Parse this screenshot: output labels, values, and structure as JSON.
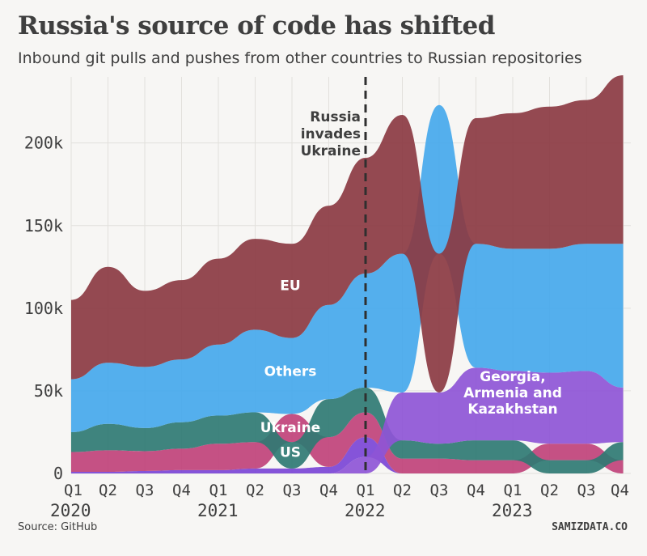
{
  "title": "Russia's source of code has shifted",
  "subtitle": "Inbound git pulls and pushes from other countries to Russian repositories",
  "source": "Source: GitHub",
  "brand": "SAMIZDATA.CO",
  "annotation": [
    "Russia",
    "invades",
    "Ukraine"
  ],
  "colors": {
    "EU": "#8b3a42",
    "Others": "#45a8ec",
    "Ukraine": "#2f7a73",
    "US": "#c0427a",
    "Georgia, Armenia and Kazakhstan": "#8e55d6",
    "Other small": "#7b45d6"
  },
  "chart_data": {
    "type": "area",
    "title": "Russia's source of code has shifted",
    "ylim": [
      0,
      240000
    ],
    "yticks": [
      0,
      50000,
      100000,
      150000,
      200000
    ],
    "yticklabels": [
      "0",
      "50k",
      "100k",
      "150k",
      "200k"
    ],
    "quarters": [
      "Q1",
      "Q2",
      "Q3",
      "Q4",
      "Q1",
      "Q2",
      "Q3",
      "Q4",
      "Q1",
      "Q2",
      "Q3",
      "Q4",
      "Q1",
      "Q2",
      "Q3",
      "Q4"
    ],
    "years": [
      {
        "label": "2020",
        "index": 0
      },
      {
        "label": "2021",
        "index": 4
      },
      {
        "label": "2022",
        "index": 8
      },
      {
        "label": "2023",
        "index": 12
      }
    ],
    "grid": true,
    "event": {
      "index": 8,
      "label": "Russia invades Ukraine"
    },
    "series": [
      {
        "name": "Other small",
        "labeled": false,
        "values": [
          1000,
          1000,
          1500,
          2000,
          2000,
          3000,
          3000,
          4000,
          12000,
          0,
          0,
          0,
          0,
          0,
          0,
          0
        ]
      },
      {
        "name": "US",
        "labeled": true,
        "values": [
          12000,
          13000,
          12000,
          13000,
          16000,
          16000,
          17000,
          18000,
          15000,
          9000,
          9000,
          8000,
          8000,
          10000,
          10000,
          8000
        ]
      },
      {
        "name": "Ukraine",
        "labeled": true,
        "values": [
          12000,
          16000,
          14000,
          16000,
          17000,
          18000,
          16000,
          23000,
          15000,
          11000,
          9000,
          12000,
          12000,
          8000,
          8000,
          11000
        ]
      },
      {
        "name": "Georgia, Armenia and Kazakhstan",
        "labeled": true,
        "values": [
          0,
          0,
          0,
          0,
          0,
          0,
          0,
          0,
          10000,
          29000,
          31000,
          44000,
          42000,
          43000,
          44000,
          33000
        ]
      },
      {
        "name": "Others",
        "labeled": true,
        "values": [
          32000,
          37000,
          37000,
          38000,
          43000,
          50000,
          46000,
          57000,
          69000,
          84000,
          90000,
          75000,
          74000,
          75000,
          77000,
          87000
        ]
      },
      {
        "name": "EU",
        "labeled": true,
        "values": [
          48000,
          58000,
          46000,
          48000,
          52000,
          55000,
          57000,
          60000,
          70000,
          84000,
          84000,
          76000,
          82000,
          86000,
          87000,
          102000
        ]
      }
    ],
    "series_labels": [
      {
        "name": "EU",
        "text": "EU",
        "index": 6,
        "y": 114000,
        "color": "#ffffff"
      },
      {
        "name": "Others",
        "text": "Others",
        "index": 6,
        "y": 62000,
        "color": "#ffffff"
      },
      {
        "name": "Ukraine",
        "text": "Ukraine",
        "index": 6,
        "y": 28000,
        "color": "#ffffff"
      },
      {
        "name": "US",
        "text": "US",
        "index": 6,
        "y": 13000,
        "color": "#ffffff"
      },
      {
        "name": "Georgia, Armenia and Kazakhstan",
        "text": [
          "Georgia,",
          "Armenia and",
          "Kazakhstan"
        ],
        "index": 12,
        "y": 49000,
        "color": "#ffffff"
      }
    ]
  }
}
